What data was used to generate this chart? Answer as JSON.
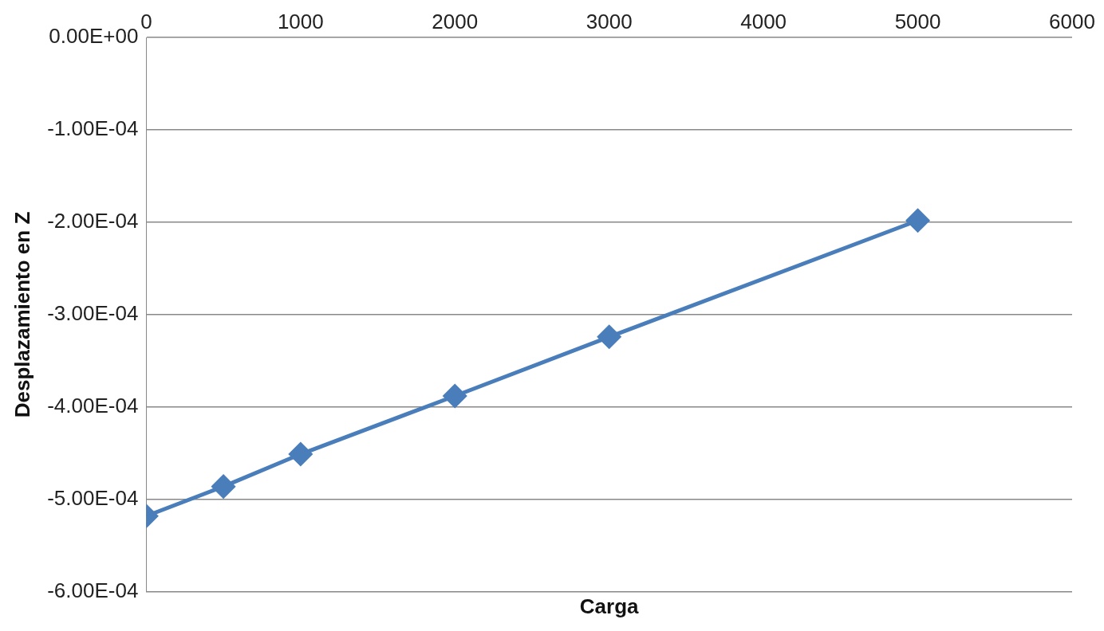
{
  "chart_data": {
    "type": "line",
    "xlabel": "Carga",
    "ylabel": "Desplazamiento en Z",
    "x": [
      0,
      500,
      1000,
      2000,
      3000,
      5000
    ],
    "series": [
      {
        "color": "#4a7ebb",
        "values": [
          -0.000518,
          -0.000486,
          -0.000451,
          -0.000388,
          -0.000324,
          -0.000198
        ]
      }
    ],
    "xlim": [
      0,
      6000
    ],
    "xticks": [
      0,
      1000,
      2000,
      3000,
      4000,
      5000,
      6000
    ],
    "ylim": [
      -0.0006,
      0
    ],
    "yticks": [
      {
        "value": 0,
        "label": "0.00E+00"
      },
      {
        "value": -0.0001,
        "label": "-1.00E-04"
      },
      {
        "value": -0.0002,
        "label": "-2.00E-04"
      },
      {
        "value": -0.0003,
        "label": "-3.00E-04"
      },
      {
        "value": -0.0004,
        "label": "-4.00E-04"
      },
      {
        "value": -0.0005,
        "label": "-5.00E-04"
      },
      {
        "value": -0.0006,
        "label": "-6.00E-04"
      }
    ],
    "grid": "y",
    "legend": false,
    "marker": "diamond",
    "line_style": "solid"
  }
}
